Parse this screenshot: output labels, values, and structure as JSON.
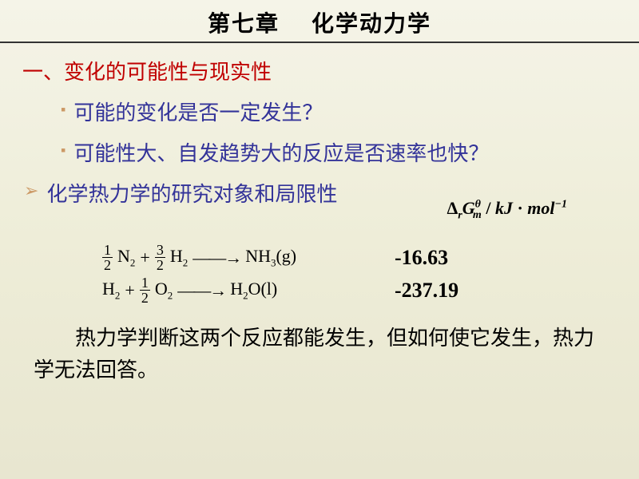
{
  "title": {
    "part1": "第七章",
    "part2": "化学动力学"
  },
  "section1": {
    "heading": "一、变化的可能性与现实性",
    "bullets": [
      "可能的变化是否一定发生？",
      "可能性大、自发趋势大的反应是否速率也快？"
    ]
  },
  "section2": {
    "heading": "化学热力学的研究对象和局限性"
  },
  "formula_header": {
    "delta": "Δ",
    "r": "r",
    "G": "G",
    "m": "m",
    "theta": "θ",
    "slash": " / ",
    "kj": "kJ",
    "dot": " · ",
    "mol": "mol",
    "neg1": "−1"
  },
  "equations": [
    {
      "lhs_frac1_num": "1",
      "lhs_frac1_den": "2",
      "lhs_sp1": "N",
      "lhs_sp1_sub": "2",
      "plus": "+",
      "lhs_frac2_num": "3",
      "lhs_frac2_den": "2",
      "lhs_sp2": "H",
      "lhs_sp2_sub": "2",
      "arrow": "——→",
      "rhs": "NH",
      "rhs_sub": "3",
      "phase": "(g)",
      "value": "-16.63"
    },
    {
      "lhs_sp1": "H",
      "lhs_sp1_sub": "2",
      "plus": "+",
      "lhs_frac2_num": "1",
      "lhs_frac2_den": "2",
      "lhs_sp2": "O",
      "lhs_sp2_sub": "2",
      "arrow": "——→",
      "rhs": "H",
      "rhs_sub": "2",
      "rhs2": "O",
      "phase": "(l)",
      "value": "-237.19"
    }
  ],
  "conclusion": "热力学判断这两个反应都能发生，但如何使它发生，热力学无法回答。",
  "colors": {
    "heading_red": "#c00000",
    "text_blue": "#333399",
    "bullet_tan": "#cc9966",
    "bg_top": "#f5f4e8",
    "bg_bottom": "#e8e6d0"
  },
  "fonts": {
    "body": "SimSun",
    "math": "Times New Roman",
    "title_size": 28,
    "body_size": 26,
    "math_size": 22
  }
}
